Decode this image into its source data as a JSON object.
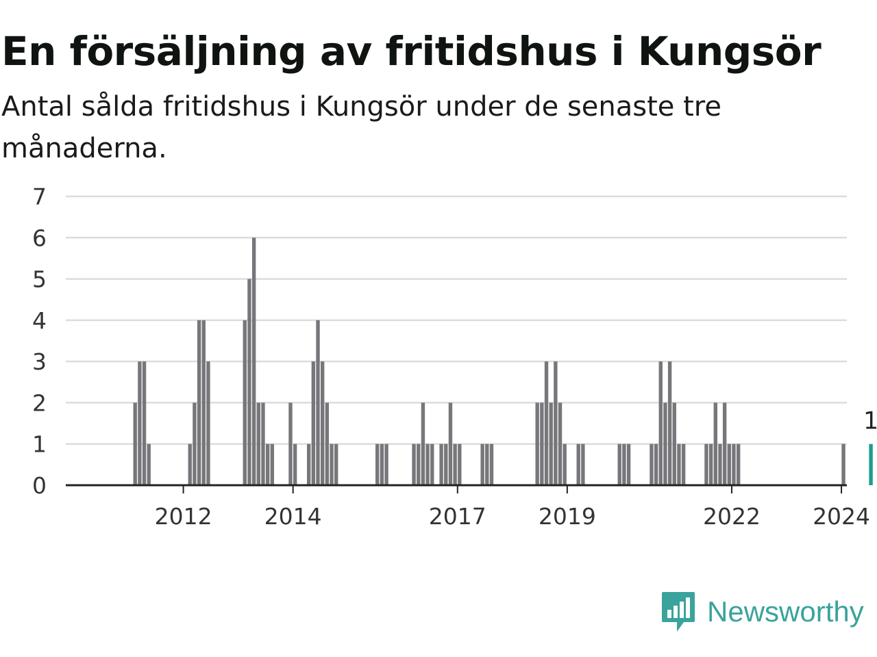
{
  "header": {
    "title": "En försäljning av fritidshus i Kungsör",
    "subtitle": "Antal sålda fritidshus i Kungsör under de senaste tre månaderna."
  },
  "brand": {
    "name": "Newsworthy",
    "icon": "newsworthy-logo-icon",
    "color": "#3aa39b"
  },
  "chart_data": {
    "type": "bar",
    "ylim": [
      0,
      7
    ],
    "y_ticks": [
      0,
      1,
      2,
      3,
      4,
      5,
      6,
      7
    ],
    "x_ticks": [
      "2012",
      "2014",
      "2017",
      "2019",
      "2022",
      "2024"
    ],
    "grid": true,
    "bar_color": "#77767b",
    "highlight_color": "#1a9e91",
    "highlight_label": "1",
    "series": [
      {
        "values": [
          0,
          0,
          0,
          0,
          0,
          0,
          0,
          0,
          0,
          0,
          0,
          0,
          0,
          2,
          3,
          3,
          1,
          0,
          0,
          0,
          0,
          0,
          0,
          0,
          0,
          1,
          2,
          4,
          4,
          3,
          0,
          0,
          0,
          0,
          0,
          0,
          0,
          4,
          5,
          6,
          2,
          2,
          1,
          1,
          0,
          0,
          0,
          2,
          1,
          0,
          0,
          1,
          3,
          4,
          3,
          2,
          1,
          1,
          0,
          0,
          0,
          0,
          0,
          0,
          0,
          0,
          1,
          1,
          1,
          0,
          0,
          0,
          0,
          0,
          1,
          1,
          2,
          1,
          1,
          0,
          1,
          1,
          2,
          1,
          1,
          0,
          0,
          0,
          0,
          1,
          1,
          1,
          0,
          0,
          0,
          0,
          0,
          0,
          0,
          0,
          0,
          2,
          2,
          3,
          2,
          3,
          2,
          1,
          0,
          0,
          1,
          1,
          0,
          0,
          0,
          0,
          0,
          0,
          0,
          1,
          1,
          1,
          0,
          0,
          0,
          0,
          1,
          1,
          3,
          2,
          3,
          2,
          1,
          1,
          0,
          0,
          0,
          0,
          1,
          1,
          2,
          1,
          2,
          1,
          1,
          1,
          0,
          0,
          0,
          0,
          0,
          0,
          0,
          0,
          0,
          0,
          0,
          0,
          0,
          0,
          0,
          0,
          0,
          0,
          0,
          0,
          0,
          0,
          1,
          0,
          0,
          0,
          0,
          0,
          1
        ]
      }
    ]
  }
}
